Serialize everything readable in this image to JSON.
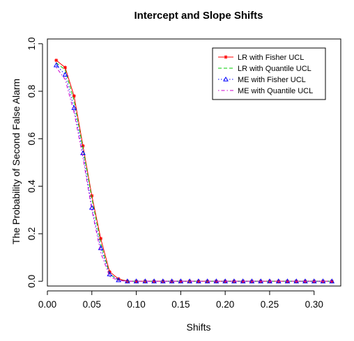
{
  "chart_data": {
    "type": "line",
    "title": "Intercept and Slope Shifts",
    "xlabel": "Shifts",
    "ylabel": "The Probability of Second False Alarm",
    "xlim": [
      0.0,
      0.33
    ],
    "ylim": [
      -0.02,
      1.02
    ],
    "xticks": [
      0.0,
      0.05,
      0.1,
      0.15,
      0.2,
      0.25,
      0.3
    ],
    "xtick_labels": [
      "0.00",
      "0.05",
      "0.10",
      "0.15",
      "0.20",
      "0.25",
      "0.30"
    ],
    "yticks": [
      0.0,
      0.2,
      0.4,
      0.6,
      0.8,
      1.0
    ],
    "ytick_labels": [
      "0.0",
      "0.2",
      "0.4",
      "0.6",
      "0.8",
      "1.0"
    ],
    "grid": false,
    "legend_position": "top-right",
    "x": [
      0.01,
      0.02,
      0.03,
      0.04,
      0.05,
      0.06,
      0.07,
      0.08,
      0.09,
      0.1,
      0.11,
      0.12,
      0.13,
      0.14,
      0.15,
      0.16,
      0.17,
      0.18,
      0.19,
      0.2,
      0.21,
      0.22,
      0.23,
      0.24,
      0.25,
      0.26,
      0.27,
      0.28,
      0.29,
      0.3,
      0.31,
      0.32
    ],
    "series": [
      {
        "name": "LR with Fisher UCL",
        "color": "#ff0000",
        "dash": "solid",
        "marker": "star",
        "values": [
          0.93,
          0.9,
          0.78,
          0.57,
          0.36,
          0.18,
          0.04,
          0.01,
          0.0,
          0.0,
          0.0,
          0.0,
          0.0,
          0.0,
          0.0,
          0.0,
          0.0,
          0.0,
          0.0,
          0.0,
          0.0,
          0.0,
          0.0,
          0.0,
          0.0,
          0.0,
          0.0,
          0.0,
          0.0,
          0.0,
          0.0,
          0.0
        ]
      },
      {
        "name": "LR with Quantile UCL",
        "color": "#00cc00",
        "dash": "dashed",
        "marker": "none",
        "values": [
          0.92,
          0.89,
          0.76,
          0.56,
          0.35,
          0.16,
          0.03,
          0.005,
          0.0,
          0.0,
          0.0,
          0.0,
          0.0,
          0.0,
          0.0,
          0.0,
          0.0,
          0.0,
          0.0,
          0.0,
          0.0,
          0.0,
          0.0,
          0.0,
          0.0,
          0.0,
          0.0,
          0.0,
          0.0,
          0.0,
          0.0,
          0.0
        ]
      },
      {
        "name": "ME with Fisher UCL",
        "color": "#0000ff",
        "dash": "dotted",
        "marker": "triangle",
        "values": [
          0.91,
          0.87,
          0.73,
          0.54,
          0.31,
          0.14,
          0.03,
          0.005,
          0.0,
          0.0,
          0.0,
          0.0,
          0.0,
          0.0,
          0.0,
          0.0,
          0.0,
          0.0,
          0.0,
          0.0,
          0.0,
          0.0,
          0.0,
          0.0,
          0.0,
          0.0,
          0.0,
          0.0,
          0.0,
          0.0,
          0.0,
          0.0
        ]
      },
      {
        "name": "ME with Quantile UCL",
        "color": "#cc00cc",
        "dash": "dotdash",
        "marker": "none",
        "values": [
          0.9,
          0.85,
          0.71,
          0.52,
          0.3,
          0.12,
          0.02,
          0.003,
          0.0,
          0.0,
          0.0,
          0.0,
          0.0,
          0.0,
          0.0,
          0.0,
          0.0,
          0.0,
          0.0,
          0.0,
          0.0,
          0.0,
          0.0,
          0.0,
          0.0,
          0.0,
          0.0,
          0.0,
          0.0,
          0.0,
          0.0,
          0.0
        ]
      }
    ]
  }
}
